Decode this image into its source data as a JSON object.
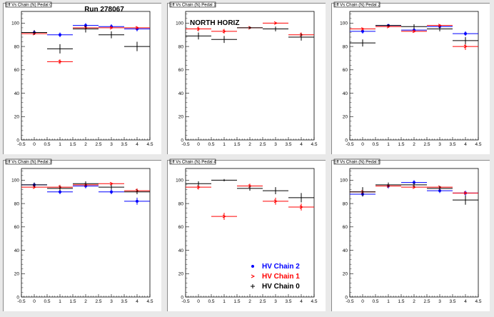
{
  "colors": {
    "chain2": "#0000ff",
    "chain1": "#ff0000",
    "chain0": "#000000"
  },
  "chart_data": [
    {
      "type": "scatter",
      "pad_title": "Eff Vs Chain (N) Pedal 0",
      "annotation": "Run 278067",
      "xlim": [
        -0.5,
        4.5
      ],
      "ylim": [
        0,
        110
      ],
      "xticks": [
        "-0.5",
        "0",
        "0.5",
        "1",
        "1.5",
        "2",
        "2.5",
        "3",
        "3.5",
        "4",
        "4.5"
      ],
      "yticks": [
        "0",
        "20",
        "40",
        "60",
        "80",
        "100"
      ],
      "series": [
        {
          "color": "chain2",
          "points": [
            [
              0,
              92,
              2
            ],
            [
              1,
              90,
              2
            ],
            [
              2,
              98,
              2
            ],
            [
              3,
              97,
              2
            ],
            [
              4,
              95,
              2
            ]
          ]
        },
        {
          "color": "chain1",
          "points": [
            [
              0,
              91,
              1
            ],
            [
              1,
              67,
              2
            ],
            [
              2,
              96,
              1
            ],
            [
              3,
              96,
              1
            ],
            [
              4,
              96,
              1
            ]
          ]
        },
        {
          "color": "chain0",
          "points": [
            [
              0,
              92,
              2
            ],
            [
              1,
              78,
              4
            ],
            [
              2,
              95,
              3
            ],
            [
              3,
              90,
              3
            ],
            [
              4,
              80,
              4
            ]
          ]
        }
      ]
    },
    {
      "type": "scatter",
      "pad_title": "Eff Vs Chain (N) Pedal 1",
      "annotation": "NORTH HORIZ",
      "xlim": [
        -0.5,
        4.5
      ],
      "ylim": [
        0,
        110
      ],
      "xticks": [
        "-0.5",
        "0",
        "0.5",
        "1",
        "1.5",
        "2",
        "2.5",
        "3",
        "3.5",
        "4",
        "4.5"
      ],
      "yticks": [
        "0",
        "20",
        "40",
        "60",
        "80",
        "100"
      ],
      "series": [
        {
          "color": "chain1",
          "points": [
            [
              0,
              95,
              2
            ],
            [
              1,
              93,
              2
            ],
            [
              2,
              96,
              1
            ],
            [
              3,
              100,
              1
            ],
            [
              4,
              90,
              2
            ]
          ]
        },
        {
          "color": "chain0",
          "points": [
            [
              0,
              89,
              3
            ],
            [
              1,
              86,
              3
            ],
            [
              2,
              96,
              1
            ],
            [
              3,
              95,
              2
            ],
            [
              4,
              88,
              3
            ]
          ]
        }
      ]
    },
    {
      "type": "scatter",
      "pad_title": "Eff Vs Chain (N) Pedal 2",
      "xlim": [
        -0.5,
        4.5
      ],
      "ylim": [
        0,
        110
      ],
      "xticks": [
        "-0.5",
        "0",
        "0.5",
        "1",
        "1.5",
        "2",
        "2.5",
        "3",
        "3.5",
        "4",
        "4.5"
      ],
      "yticks": [
        "0",
        "20",
        "40",
        "60",
        "80",
        "100"
      ],
      "series": [
        {
          "color": "chain2",
          "points": [
            [
              0,
              93,
              2
            ],
            [
              1,
              98,
              1
            ],
            [
              2,
              94,
              2
            ],
            [
              3,
              97,
              1
            ],
            [
              4,
              91,
              2
            ]
          ]
        },
        {
          "color": "chain1",
          "points": [
            [
              0,
              95,
              1
            ],
            [
              1,
              97,
              1
            ],
            [
              2,
              93,
              1
            ],
            [
              3,
              98,
              1
            ],
            [
              4,
              80,
              3
            ]
          ]
        },
        {
          "color": "chain0",
          "points": [
            [
              0,
              83,
              3
            ],
            [
              1,
              98,
              1
            ],
            [
              2,
              97,
              2
            ],
            [
              3,
              95,
              2
            ],
            [
              4,
              85,
              3
            ]
          ]
        }
      ]
    },
    {
      "type": "scatter",
      "pad_title": "Eff Vs Chain (N) Pedal 3",
      "xlim": [
        -0.5,
        4.5
      ],
      "ylim": [
        0,
        110
      ],
      "xticks": [
        "-0.5",
        "0",
        "0.5",
        "1",
        "1.5",
        "2",
        "2.5",
        "3",
        "3.5",
        "4",
        "4.5"
      ],
      "yticks": [
        "0",
        "20",
        "40",
        "60",
        "80",
        "100"
      ],
      "series": [
        {
          "color": "chain2",
          "points": [
            [
              0,
              96,
              2
            ],
            [
              1,
              90,
              2
            ],
            [
              2,
              95,
              2
            ],
            [
              3,
              90,
              2
            ],
            [
              4,
              82,
              3
            ]
          ]
        },
        {
          "color": "chain1",
          "points": [
            [
              0,
              94,
              1
            ],
            [
              1,
              94,
              2
            ],
            [
              2,
              96,
              1
            ],
            [
              3,
              97,
              1
            ],
            [
              4,
              91,
              2
            ]
          ]
        },
        {
          "color": "chain0",
          "points": [
            [
              0,
              96,
              2
            ],
            [
              1,
              93,
              2
            ],
            [
              2,
              97,
              2
            ],
            [
              3,
              94,
              2
            ],
            [
              4,
              90,
              2
            ]
          ]
        }
      ]
    },
    {
      "type": "scatter",
      "pad_title": "Eff Vs Chain (N) Pedal 4",
      "xlim": [
        -0.5,
        4.5
      ],
      "ylim": [
        0,
        110
      ],
      "xticks": [
        "-0.5",
        "0",
        "0.5",
        "1",
        "1.5",
        "2",
        "2.5",
        "3",
        "3.5",
        "4",
        "4.5"
      ],
      "yticks": [
        "0",
        "20",
        "40",
        "60",
        "80",
        "100"
      ],
      "legend": {
        "position": "bottom-right",
        "entries": [
          {
            "label": "HV Chain 2",
            "color": "chain2",
            "marker": "dot"
          },
          {
            "label": "HV Chain 1",
            "color": "chain1",
            "marker": "arrow"
          },
          {
            "label": "HV Chain 0",
            "color": "chain0",
            "marker": "cross"
          }
        ]
      },
      "series": [
        {
          "color": "chain1",
          "points": [
            [
              0,
              94,
              2
            ],
            [
              1,
              69,
              3
            ],
            [
              2,
              95,
              2
            ],
            [
              3,
              82,
              3
            ],
            [
              4,
              77,
              3
            ]
          ]
        },
        {
          "color": "chain0",
          "points": [
            [
              0,
              97,
              2
            ],
            [
              1,
              100,
              1
            ],
            [
              2,
              93,
              2
            ],
            [
              3,
              91,
              3
            ],
            [
              4,
              85,
              4
            ]
          ]
        }
      ]
    },
    {
      "type": "scatter",
      "pad_title": "Eff Vs Chain (N) Pedal 5",
      "xlim": [
        -0.5,
        4.5
      ],
      "ylim": [
        0,
        110
      ],
      "xticks": [
        "-0.5",
        "0",
        "0.5",
        "1",
        "1.5",
        "2",
        "2.5",
        "3",
        "3.5",
        "4",
        "4.5"
      ],
      "yticks": [
        "0",
        "20",
        "40",
        "60",
        "80",
        "100"
      ],
      "series": [
        {
          "color": "chain2",
          "points": [
            [
              0,
              88,
              2
            ],
            [
              1,
              95,
              2
            ],
            [
              2,
              98,
              2
            ],
            [
              3,
              91,
              2
            ],
            [
              4,
              89,
              2
            ]
          ]
        },
        {
          "color": "chain1",
          "points": [
            [
              0,
              90,
              1
            ],
            [
              1,
              95,
              1
            ],
            [
              2,
              94,
              1
            ],
            [
              3,
              94,
              1
            ],
            [
              4,
              89,
              1
            ]
          ]
        },
        {
          "color": "chain0",
          "points": [
            [
              0,
              90,
              4
            ],
            [
              1,
              96,
              2
            ],
            [
              2,
              96,
              2
            ],
            [
              3,
              93,
              2
            ],
            [
              4,
              83,
              4
            ]
          ]
        }
      ]
    }
  ]
}
